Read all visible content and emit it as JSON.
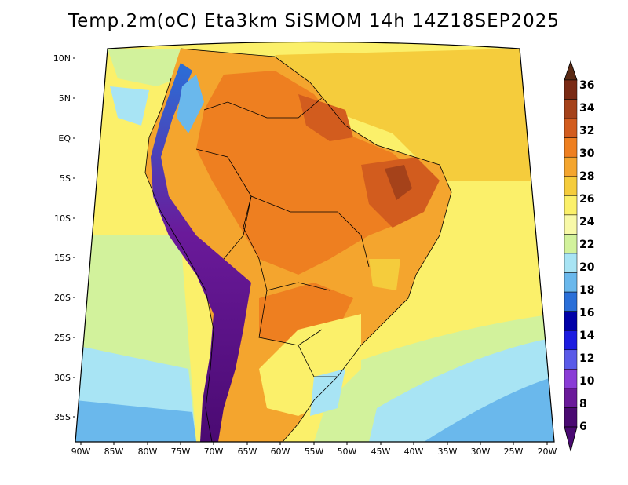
{
  "title": "Temp.2m(oC) Eta3km SiSMOM 14h 14Z18SEP2025",
  "lat_labels": [
    "10N",
    "5N",
    "EQ",
    "5S",
    "10S",
    "15S",
    "20S",
    "25S",
    "30S",
    "35S"
  ],
  "lon_labels": [
    "90W",
    "85W",
    "80W",
    "75W",
    "70W",
    "65W",
    "60W",
    "55W",
    "50W",
    "45W",
    "40W",
    "35W",
    "30W",
    "25W",
    "20W"
  ],
  "colorbar": {
    "labels": [
      "36",
      "34",
      "32",
      "30",
      "28",
      "26",
      "24",
      "22",
      "20",
      "18",
      "16",
      "14",
      "12",
      "10",
      "8",
      "6"
    ],
    "colors": [
      "#7a2a14",
      "#a5421a",
      "#d25c1e",
      "#ee7f20",
      "#f4a52e",
      "#f5cc3c",
      "#fbf06a",
      "#f8f9a8",
      "#d2f29c",
      "#a8e4f4",
      "#6ab8ec",
      "#2a6fd8",
      "#0000a8",
      "#1c1ce0",
      "#5a5ae8",
      "#8a3cd6",
      "#6a1a9a",
      "#4a0a72"
    ],
    "top_color": "#5a2a14",
    "bottom_color": "#4a0a72"
  }
}
